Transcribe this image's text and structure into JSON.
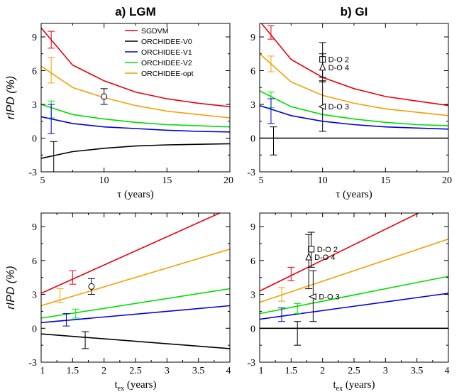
{
  "chart_data": [
    {
      "id": "a_tau",
      "type": "line",
      "title": "a) LGM",
      "ylabel": "rIPD (%)",
      "xlabel": "τ (years)",
      "xlim": [
        5,
        20
      ],
      "ylim": [
        -3,
        10.2
      ],
      "xticks": [
        "5",
        "10",
        "15",
        "20"
      ],
      "yticks": [
        "-3",
        "0",
        "3",
        "6",
        "9"
      ],
      "legend": {
        "position": "top-right",
        "entries": [
          "SGDVM",
          "ORCHIDEE-V0",
          "ORCHIDEE-V1",
          "ORCHIDEE-V2",
          "ORCHIDEE-opt"
        ]
      },
      "series": [
        {
          "name": "SGDVM",
          "color": "#e8000b",
          "points": [
            [
              5,
              9.8
            ],
            [
              7.5,
              6.5
            ],
            [
              10,
              5.1
            ],
            [
              12.5,
              4.1
            ],
            [
              15,
              3.5
            ],
            [
              17.5,
              3.1
            ],
            [
              20,
              2.8
            ]
          ]
        },
        {
          "name": "ORCHIDEE-V0",
          "color": "#000000",
          "points": [
            [
              5,
              -1.8
            ],
            [
              7.5,
              -1.2
            ],
            [
              10,
              -0.9
            ],
            [
              12.5,
              -0.7
            ],
            [
              15,
              -0.6
            ],
            [
              17.5,
              -0.55
            ],
            [
              20,
              -0.5
            ]
          ]
        },
        {
          "name": "ORCHIDEE-V1",
          "color": "#0000dd",
          "points": [
            [
              5,
              1.9
            ],
            [
              7.5,
              1.3
            ],
            [
              10,
              1.0
            ],
            [
              12.5,
              0.85
            ],
            [
              15,
              0.7
            ],
            [
              17.5,
              0.6
            ],
            [
              20,
              0.55
            ]
          ]
        },
        {
          "name": "ORCHIDEE-V2",
          "color": "#00dd00",
          "points": [
            [
              5,
              3.0
            ],
            [
              7.5,
              2.1
            ],
            [
              10,
              1.7
            ],
            [
              12.5,
              1.4
            ],
            [
              15,
              1.2
            ],
            [
              17.5,
              1.1
            ],
            [
              20,
              1.0
            ]
          ]
        },
        {
          "name": "ORCHIDEE-opt",
          "color": "#f5a000",
          "points": [
            [
              5,
              6.4
            ],
            [
              7.5,
              4.5
            ],
            [
              10,
              3.6
            ],
            [
              12.5,
              2.9
            ],
            [
              15,
              2.4
            ],
            [
              17.5,
              2.1
            ],
            [
              20,
              1.8
            ]
          ]
        }
      ],
      "errorbars": [
        {
          "x": 5.8,
          "lo": 8.0,
          "hi": 9.5,
          "color": "#e8000b"
        },
        {
          "x": 5.8,
          "lo": 4.9,
          "hi": 7.2,
          "color": "#f5a000"
        },
        {
          "x": 5.8,
          "lo": 1.8,
          "hi": 3.3,
          "color": "#00dd00"
        },
        {
          "x": 5.8,
          "lo": 0.4,
          "hi": 3.0,
          "color": "#0000dd"
        },
        {
          "x": 6.0,
          "lo": -3.0,
          "hi": -0.3,
          "color": "#000000"
        }
      ],
      "markers": [
        {
          "x": 10,
          "y": 3.7,
          "lo": 3.0,
          "hi": 4.4,
          "shape": "circle",
          "label": ""
        }
      ]
    },
    {
      "id": "b_tau",
      "type": "line",
      "title": "b) GI",
      "ylabel": "",
      "xlabel": "τ (years)",
      "xlim": [
        5,
        20
      ],
      "ylim": [
        -3,
        10.2
      ],
      "xticks": [
        "5",
        "10",
        "15",
        "20"
      ],
      "yticks": [
        "-3",
        "0",
        "3",
        "6",
        "9"
      ],
      "series": [
        {
          "name": "SGDVM",
          "color": "#e8000b",
          "points": [
            [
              5,
              10.4
            ],
            [
              7.5,
              7.0
            ],
            [
              10,
              5.4
            ],
            [
              12.5,
              4.4
            ],
            [
              15,
              3.7
            ],
            [
              17.5,
              3.3
            ],
            [
              20,
              2.9
            ]
          ]
        },
        {
          "name": "ORCHIDEE-V0",
          "color": "#000000",
          "points": [
            [
              5,
              0.0
            ],
            [
              20,
              0.0
            ]
          ]
        },
        {
          "name": "ORCHIDEE-V1",
          "color": "#0000dd",
          "points": [
            [
              5,
              2.9
            ],
            [
              7.5,
              2.0
            ],
            [
              10,
              1.5
            ],
            [
              12.5,
              1.2
            ],
            [
              15,
              1.0
            ],
            [
              17.5,
              0.9
            ],
            [
              20,
              0.8
            ]
          ]
        },
        {
          "name": "ORCHIDEE-V2",
          "color": "#00dd00",
          "points": [
            [
              5,
              4.2
            ],
            [
              7.5,
              2.8
            ],
            [
              10,
              2.1
            ],
            [
              12.5,
              1.7
            ],
            [
              15,
              1.4
            ],
            [
              17.5,
              1.2
            ],
            [
              20,
              1.1
            ]
          ]
        },
        {
          "name": "ORCHIDEE-opt",
          "color": "#f5a000",
          "points": [
            [
              5,
              7.5
            ],
            [
              7.5,
              5.0
            ],
            [
              10,
              3.8
            ],
            [
              12.5,
              3.1
            ],
            [
              15,
              2.6
            ],
            [
              17.5,
              2.3
            ],
            [
              20,
              2.0
            ]
          ]
        }
      ],
      "errorbars": [
        {
          "x": 5.9,
          "lo": 8.8,
          "hi": 10.0,
          "color": "#e8000b"
        },
        {
          "x": 5.9,
          "lo": 5.9,
          "hi": 7.3,
          "color": "#f5a000"
        },
        {
          "x": 5.9,
          "lo": 2.7,
          "hi": 4.1,
          "color": "#00dd00"
        },
        {
          "x": 5.9,
          "lo": 1.3,
          "hi": 3.5,
          "color": "#0000dd"
        },
        {
          "x": 6.1,
          "lo": -1.5,
          "hi": 1.0,
          "color": "#000000"
        }
      ],
      "markers": [
        {
          "x": 10,
          "y": 7.0,
          "lo": 5.4,
          "hi": 8.5,
          "shape": "square",
          "label": "D-O 2"
        },
        {
          "x": 10,
          "y": 6.3,
          "lo": 5.0,
          "hi": 7.5,
          "shape": "triangle-up",
          "label": "D-O 4"
        },
        {
          "x": 10,
          "y": 2.8,
          "lo": 0.6,
          "hi": 5.1,
          "shape": "triangle-left",
          "label": "D-O 3"
        }
      ]
    },
    {
      "id": "a_tex",
      "type": "line",
      "title": "",
      "ylabel": "rIPD (%)",
      "xlabel": "t",
      "xlabel_sub": "ex",
      "xlabel_rest": " (years)",
      "xlim": [
        1,
        4
      ],
      "ylim": [
        -3,
        10.2
      ],
      "xticks": [
        "1",
        "1.5",
        "2",
        "2.5",
        "3",
        "3.5",
        "4"
      ],
      "yticks": [
        "-3",
        "0",
        "3",
        "6",
        "9"
      ],
      "series": [
        {
          "name": "SGDVM",
          "color": "#e8000b",
          "points": [
            [
              1,
              3.1
            ],
            [
              4,
              10.6
            ]
          ]
        },
        {
          "name": "ORCHIDEE-V0",
          "color": "#000000",
          "points": [
            [
              1,
              -0.5
            ],
            [
              4,
              -1.8
            ]
          ]
        },
        {
          "name": "ORCHIDEE-V1",
          "color": "#0000dd",
          "points": [
            [
              1,
              0.5
            ],
            [
              4,
              2.0
            ]
          ]
        },
        {
          "name": "ORCHIDEE-V2",
          "color": "#00dd00",
          "points": [
            [
              1,
              0.9
            ],
            [
              4,
              3.5
            ]
          ]
        },
        {
          "name": "ORCHIDEE-opt",
          "color": "#f5a000",
          "points": [
            [
              1,
              2.0
            ],
            [
              4,
              7.0
            ]
          ]
        }
      ],
      "errorbars": [
        {
          "x": 1.5,
          "lo": 3.9,
          "hi": 5.1,
          "color": "#e8000b"
        },
        {
          "x": 1.3,
          "lo": 2.3,
          "hi": 3.5,
          "color": "#f5a000"
        },
        {
          "x": 1.55,
          "lo": 0.9,
          "hi": 1.7,
          "color": "#00dd00"
        },
        {
          "x": 1.4,
          "lo": 0.2,
          "hi": 1.3,
          "color": "#0000dd"
        },
        {
          "x": 1.7,
          "lo": -1.8,
          "hi": -0.3,
          "color": "#000000"
        }
      ],
      "markers": [
        {
          "x": 1.8,
          "y": 3.7,
          "lo": 3.0,
          "hi": 4.4,
          "shape": "circle",
          "label": ""
        }
      ]
    },
    {
      "id": "b_tex",
      "type": "line",
      "title": "",
      "ylabel": "",
      "xlabel": "t",
      "xlabel_sub": "ex",
      "xlabel_rest": " (years)",
      "xlim": [
        1,
        4
      ],
      "ylim": [
        -3,
        10.2
      ],
      "xticks": [
        "1",
        "1.5",
        "2",
        "2.5",
        "3",
        "3.5",
        "4"
      ],
      "yticks": [
        "-3",
        "0",
        "3",
        "6",
        "9"
      ],
      "series": [
        {
          "name": "SGDVM",
          "color": "#e8000b",
          "points": [
            [
              1,
              3.3
            ],
            [
              4,
              11.5
            ]
          ]
        },
        {
          "name": "ORCHIDEE-V0",
          "color": "#000000",
          "points": [
            [
              1,
              0.0
            ],
            [
              4,
              0.0
            ]
          ]
        },
        {
          "name": "ORCHIDEE-V1",
          "color": "#0000dd",
          "points": [
            [
              1,
              0.8
            ],
            [
              4,
              3.1
            ]
          ]
        },
        {
          "name": "ORCHIDEE-V2",
          "color": "#00dd00",
          "points": [
            [
              1,
              1.3
            ],
            [
              4,
              4.6
            ]
          ]
        },
        {
          "name": "ORCHIDEE-opt",
          "color": "#f5a000",
          "points": [
            [
              1,
              2.3
            ],
            [
              4,
              7.9
            ]
          ]
        }
      ],
      "errorbars": [
        {
          "x": 1.5,
          "lo": 4.2,
          "hi": 5.4,
          "color": "#e8000b"
        },
        {
          "x": 1.35,
          "lo": 2.4,
          "hi": 3.6,
          "color": "#f5a000"
        },
        {
          "x": 1.6,
          "lo": 1.3,
          "hi": 2.2,
          "color": "#00dd00"
        },
        {
          "x": 1.35,
          "lo": 0.6,
          "hi": 1.8,
          "color": "#0000dd"
        },
        {
          "x": 1.6,
          "lo": -1.5,
          "hi": 0.6,
          "color": "#000000"
        }
      ],
      "markers": [
        {
          "x": 1.82,
          "y": 7.0,
          "lo": 5.4,
          "hi": 8.5,
          "shape": "square",
          "label": "D-O 2"
        },
        {
          "x": 1.78,
          "y": 6.3,
          "lo": 3.5,
          "hi": 8.3,
          "shape": "triangle-up",
          "label": "D-O 4"
        },
        {
          "x": 1.85,
          "y": 2.8,
          "lo": 0.6,
          "hi": 5.1,
          "shape": "triangle-left",
          "label": "D-O 3"
        }
      ]
    }
  ]
}
